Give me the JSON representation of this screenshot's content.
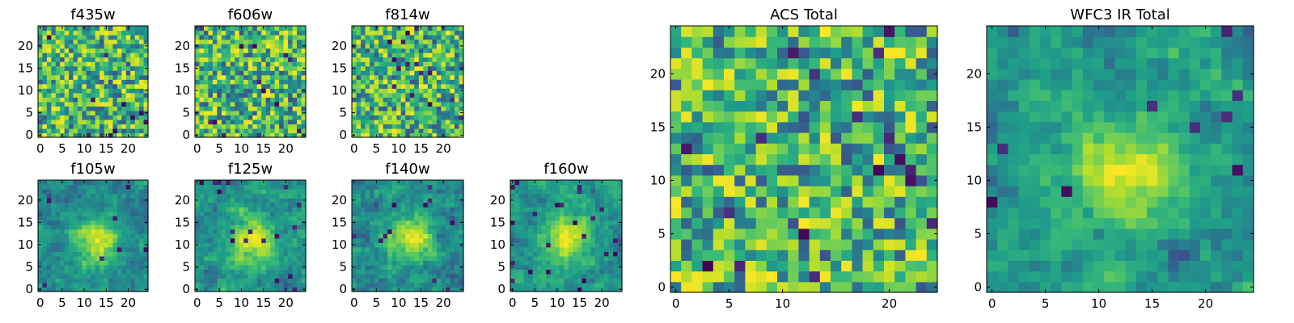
{
  "chart_data": [
    {
      "type": "heatmap",
      "title": "f435w",
      "xticks": [
        "0",
        "5",
        "10",
        "15",
        "20"
      ],
      "yticks": [
        "0",
        "5",
        "10",
        "15",
        "20"
      ],
      "xlim": [
        -0.5,
        24.5
      ],
      "ylim": [
        -0.5,
        24.5
      ],
      "grid_size": 25,
      "colormap": "viridis",
      "texture": "noisy"
    },
    {
      "type": "heatmap",
      "title": "f606w",
      "xticks": [
        "0",
        "5",
        "10",
        "15",
        "20"
      ],
      "yticks": [
        "0",
        "5",
        "10",
        "15",
        "20"
      ],
      "xlim": [
        -0.5,
        24.5
      ],
      "ylim": [
        -0.5,
        24.5
      ],
      "grid_size": 25,
      "colormap": "viridis",
      "texture": "noisy"
    },
    {
      "type": "heatmap",
      "title": "f814w",
      "xticks": [
        "0",
        "5",
        "10",
        "15",
        "20"
      ],
      "yticks": [
        "0",
        "5",
        "10",
        "15",
        "20"
      ],
      "xlim": [
        -0.5,
        24.5
      ],
      "ylim": [
        -0.5,
        24.5
      ],
      "grid_size": 25,
      "colormap": "viridis",
      "texture": "noisy"
    },
    {
      "type": "heatmap",
      "title": "f105w",
      "xticks": [
        "0",
        "5",
        "10",
        "15",
        "20"
      ],
      "yticks": [
        "0",
        "5",
        "10",
        "15",
        "20"
      ],
      "xlim": [
        -0.5,
        24.5
      ],
      "ylim": [
        -0.5,
        24.5
      ],
      "grid_size": 25,
      "colormap": "viridis",
      "texture": "smooth"
    },
    {
      "type": "heatmap",
      "title": "f125w",
      "xticks": [
        "0",
        "5",
        "10",
        "15",
        "20"
      ],
      "yticks": [
        "0",
        "5",
        "10",
        "15",
        "20"
      ],
      "xlim": [
        -0.5,
        24.5
      ],
      "ylim": [
        -0.5,
        24.5
      ],
      "grid_size": 25,
      "colormap": "viridis",
      "texture": "smooth"
    },
    {
      "type": "heatmap",
      "title": "f140w",
      "xticks": [
        "0",
        "5",
        "10",
        "15",
        "20"
      ],
      "yticks": [
        "0",
        "5",
        "10",
        "15",
        "20"
      ],
      "xlim": [
        -0.5,
        24.5
      ],
      "ylim": [
        -0.5,
        24.5
      ],
      "grid_size": 25,
      "colormap": "viridis",
      "texture": "smooth"
    },
    {
      "type": "heatmap",
      "title": "f160w",
      "xticks": [
        "0",
        "5",
        "10",
        "15",
        "20"
      ],
      "yticks": [
        "0",
        "5",
        "10",
        "15",
        "20"
      ],
      "xlim": [
        -0.5,
        24.5
      ],
      "ylim": [
        -0.5,
        24.5
      ],
      "grid_size": 25,
      "colormap": "viridis",
      "texture": "smooth"
    },
    {
      "type": "heatmap",
      "title": "ACS Total",
      "xticks": [
        "0",
        "5",
        "10",
        "20"
      ],
      "yticks": [
        "0",
        "5",
        "10",
        "15",
        "20"
      ],
      "xlim": [
        -0.5,
        24.5
      ],
      "ylim": [
        -0.5,
        24.5
      ],
      "grid_size": 25,
      "colormap": "viridis",
      "texture": "noisy"
    },
    {
      "type": "heatmap",
      "title": "WFC3 IR Total",
      "xticks": [
        "0",
        "5",
        "10",
        "15",
        "20"
      ],
      "yticks": [
        "0",
        "5",
        "10",
        "15",
        "20"
      ],
      "xlim": [
        -0.5,
        24.5
      ],
      "ylim": [
        -0.5,
        24.5
      ],
      "grid_size": 25,
      "colormap": "viridis",
      "texture": "smooth"
    }
  ],
  "colors": {
    "viridis_low": "#440154",
    "viridis_high": "#fde725"
  }
}
